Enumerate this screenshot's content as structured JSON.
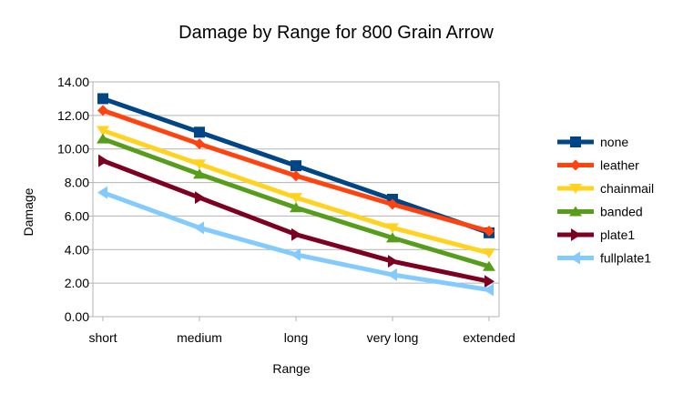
{
  "chart_data": {
    "type": "line",
    "title": "Damage by Range for 800 Grain Arrow",
    "xlabel": "Range",
    "ylabel": "Damage",
    "categories": [
      "short",
      "medium",
      "long",
      "very long",
      "extended"
    ],
    "ylim": [
      0,
      14
    ],
    "yticks": [
      "0.00",
      "2.00",
      "4.00",
      "6.00",
      "8.00",
      "10.00",
      "12.00",
      "14.00"
    ],
    "grid": true,
    "legend_position": "right",
    "series": [
      {
        "name": "none",
        "color": "#004586",
        "marker": "square",
        "values": [
          13.0,
          11.0,
          9.0,
          7.0,
          5.0
        ]
      },
      {
        "name": "leather",
        "color": "#ff420e",
        "marker": "diamond",
        "values": [
          12.3,
          10.3,
          8.4,
          6.7,
          5.1
        ]
      },
      {
        "name": "chainmail",
        "color": "#ffd320",
        "marker": "triangle-down",
        "values": [
          11.1,
          9.1,
          7.1,
          5.3,
          3.8
        ]
      },
      {
        "name": "banded",
        "color": "#579d1c",
        "marker": "triangle-up",
        "values": [
          10.6,
          8.5,
          6.5,
          4.7,
          3.0
        ]
      },
      {
        "name": "plate1",
        "color": "#7e0021",
        "marker": "triangle-right",
        "values": [
          9.3,
          7.1,
          4.9,
          3.3,
          2.1
        ]
      },
      {
        "name": "fullplate1",
        "color": "#83caff",
        "marker": "triangle-left",
        "values": [
          7.4,
          5.3,
          3.7,
          2.5,
          1.6
        ]
      }
    ]
  }
}
